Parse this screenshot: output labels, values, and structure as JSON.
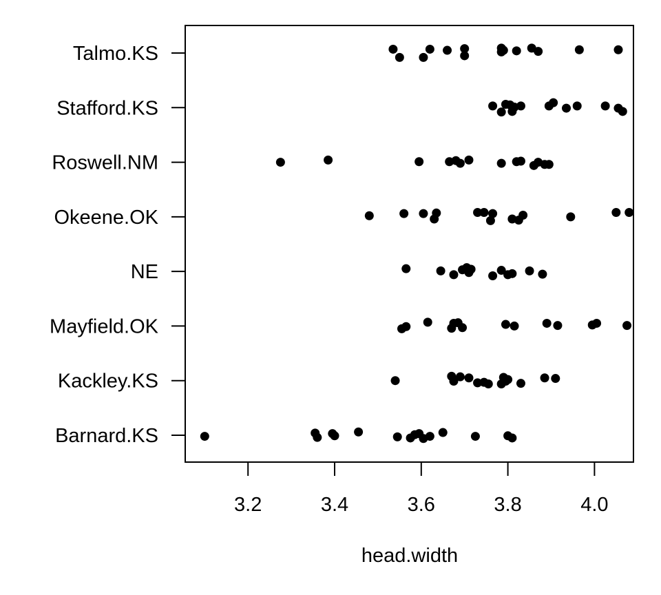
{
  "chart_data": {
    "type": "scatter",
    "title": "",
    "xlabel": "head.width",
    "ylabel": "",
    "xlim": [
      3.055,
      4.09
    ],
    "xticks": [
      "3.2",
      "3.4",
      "3.6",
      "3.8",
      "4.0"
    ],
    "xtick_values": [
      3.2,
      3.4,
      3.6,
      3.8,
      4.0
    ],
    "grid": false,
    "legend": "none",
    "point_color": "#000000",
    "categories": [
      "Barnard.KS",
      "Kackley.KS",
      "Mayfield.OK",
      "NE",
      "Okeene.OK",
      "Roswell.NM",
      "Stafford.KS",
      "Talmo.KS"
    ],
    "series": [
      {
        "category": "Barnard.KS",
        "points": [
          {
            "x": 3.1,
            "j": -0.02
          },
          {
            "x": 3.355,
            "j": 0.04
          },
          {
            "x": 3.36,
            "j": -0.04
          },
          {
            "x": 3.395,
            "j": 0.03
          },
          {
            "x": 3.4,
            "j": -0.01
          },
          {
            "x": 3.455,
            "j": 0.06
          },
          {
            "x": 3.545,
            "j": -0.03
          },
          {
            "x": 3.575,
            "j": -0.05
          },
          {
            "x": 3.585,
            "j": 0.01
          },
          {
            "x": 3.595,
            "j": 0.03
          },
          {
            "x": 3.605,
            "j": -0.06
          },
          {
            "x": 3.62,
            "j": -0.02
          },
          {
            "x": 3.65,
            "j": 0.05
          },
          {
            "x": 3.725,
            "j": -0.02
          },
          {
            "x": 3.8,
            "j": -0.01
          },
          {
            "x": 3.81,
            "j": -0.05
          }
        ]
      },
      {
        "category": "Kackley.KS",
        "points": [
          {
            "x": 3.54,
            "j": 0.0
          },
          {
            "x": 3.67,
            "j": 0.08
          },
          {
            "x": 3.675,
            "j": -0.01
          },
          {
            "x": 3.69,
            "j": 0.07
          },
          {
            "x": 3.71,
            "j": 0.05
          },
          {
            "x": 3.73,
            "j": -0.04
          },
          {
            "x": 3.745,
            "j": -0.03
          },
          {
            "x": 3.755,
            "j": -0.06
          },
          {
            "x": 3.785,
            "j": -0.06
          },
          {
            "x": 3.79,
            "j": 0.06
          },
          {
            "x": 3.795,
            "j": -0.01
          },
          {
            "x": 3.8,
            "j": 0.02
          },
          {
            "x": 3.83,
            "j": -0.05
          },
          {
            "x": 3.885,
            "j": 0.05
          },
          {
            "x": 3.91,
            "j": 0.04
          }
        ]
      },
      {
        "category": "Mayfield.OK",
        "points": [
          {
            "x": 3.555,
            "j": -0.05
          },
          {
            "x": 3.565,
            "j": -0.01
          },
          {
            "x": 3.615,
            "j": 0.07
          },
          {
            "x": 3.67,
            "j": -0.04
          },
          {
            "x": 3.675,
            "j": 0.05
          },
          {
            "x": 3.685,
            "j": 0.06
          },
          {
            "x": 3.695,
            "j": -0.03
          },
          {
            "x": 3.795,
            "j": 0.03
          },
          {
            "x": 3.815,
            "j": 0.0
          },
          {
            "x": 3.89,
            "j": 0.05
          },
          {
            "x": 3.915,
            "j": 0.01
          },
          {
            "x": 3.995,
            "j": 0.02
          },
          {
            "x": 4.005,
            "j": 0.05
          },
          {
            "x": 4.075,
            "j": 0.01
          }
        ]
      },
      {
        "category": "NE",
        "points": [
          {
            "x": 3.565,
            "j": 0.05
          },
          {
            "x": 3.645,
            "j": 0.01
          },
          {
            "x": 3.675,
            "j": -0.06
          },
          {
            "x": 3.695,
            "j": 0.03
          },
          {
            "x": 3.705,
            "j": 0.07
          },
          {
            "x": 3.71,
            "j": -0.02
          },
          {
            "x": 3.715,
            "j": 0.04
          },
          {
            "x": 3.765,
            "j": -0.08
          },
          {
            "x": 3.785,
            "j": 0.02
          },
          {
            "x": 3.8,
            "j": -0.06
          },
          {
            "x": 3.81,
            "j": -0.04
          },
          {
            "x": 3.85,
            "j": 0.01
          },
          {
            "x": 3.88,
            "j": -0.05
          }
        ]
      },
      {
        "category": "Okeene.OK",
        "points": [
          {
            "x": 3.48,
            "j": 0.02
          },
          {
            "x": 3.56,
            "j": 0.06
          },
          {
            "x": 3.605,
            "j": 0.06
          },
          {
            "x": 3.635,
            "j": 0.07
          },
          {
            "x": 3.63,
            "j": -0.04
          },
          {
            "x": 3.73,
            "j": 0.08
          },
          {
            "x": 3.745,
            "j": 0.08
          },
          {
            "x": 3.76,
            "j": -0.07
          },
          {
            "x": 3.765,
            "j": 0.06
          },
          {
            "x": 3.81,
            "j": -0.04
          },
          {
            "x": 3.825,
            "j": -0.06
          },
          {
            "x": 3.835,
            "j": 0.03
          },
          {
            "x": 3.945,
            "j": 0.0
          },
          {
            "x": 4.05,
            "j": 0.08
          },
          {
            "x": 4.08,
            "j": 0.08
          }
        ]
      },
      {
        "category": "Roswell.NM",
        "points": [
          {
            "x": 3.275,
            "j": 0.0
          },
          {
            "x": 3.385,
            "j": 0.04
          },
          {
            "x": 3.595,
            "j": 0.01
          },
          {
            "x": 3.665,
            "j": 0.01
          },
          {
            "x": 3.68,
            "j": 0.03
          },
          {
            "x": 3.69,
            "j": -0.02
          },
          {
            "x": 3.71,
            "j": 0.04
          },
          {
            "x": 3.785,
            "j": -0.02
          },
          {
            "x": 3.82,
            "j": 0.01
          },
          {
            "x": 3.83,
            "j": 0.02
          },
          {
            "x": 3.86,
            "j": -0.06
          },
          {
            "x": 3.87,
            "j": 0.0
          },
          {
            "x": 3.885,
            "j": -0.04
          },
          {
            "x": 3.895,
            "j": -0.04
          }
        ]
      },
      {
        "category": "Stafford.KS",
        "points": [
          {
            "x": 3.765,
            "j": 0.03
          },
          {
            "x": 3.785,
            "j": -0.08
          },
          {
            "x": 3.795,
            "j": 0.06
          },
          {
            "x": 3.805,
            "j": 0.05
          },
          {
            "x": 3.81,
            "j": -0.07
          },
          {
            "x": 3.815,
            "j": 0.01
          },
          {
            "x": 3.83,
            "j": 0.03
          },
          {
            "x": 3.895,
            "j": 0.03
          },
          {
            "x": 3.905,
            "j": 0.09
          },
          {
            "x": 3.935,
            "j": -0.01
          },
          {
            "x": 3.96,
            "j": 0.03
          },
          {
            "x": 4.025,
            "j": 0.03
          },
          {
            "x": 4.055,
            "j": -0.01
          },
          {
            "x": 4.065,
            "j": -0.07
          }
        ]
      },
      {
        "category": "Talmo.KS",
        "points": [
          {
            "x": 3.535,
            "j": 0.07
          },
          {
            "x": 3.55,
            "j": -0.08
          },
          {
            "x": 3.605,
            "j": -0.08
          },
          {
            "x": 3.62,
            "j": 0.07
          },
          {
            "x": 3.66,
            "j": 0.05
          },
          {
            "x": 3.7,
            "j": -0.05
          },
          {
            "x": 3.7,
            "j": 0.08
          },
          {
            "x": 3.785,
            "j": 0.09
          },
          {
            "x": 3.785,
            "j": 0.02
          },
          {
            "x": 3.79,
            "j": 0.05
          },
          {
            "x": 3.82,
            "j": 0.04
          },
          {
            "x": 3.855,
            "j": 0.09
          },
          {
            "x": 3.87,
            "j": 0.03
          },
          {
            "x": 3.965,
            "j": 0.06
          },
          {
            "x": 4.055,
            "j": 0.06
          }
        ]
      }
    ]
  }
}
